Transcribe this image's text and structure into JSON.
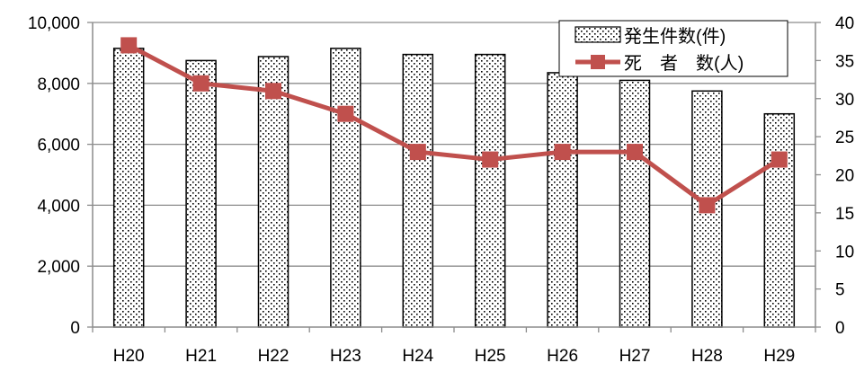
{
  "chart_data": {
    "type": "bar+line",
    "categories": [
      "H20",
      "H21",
      "H22",
      "H23",
      "H24",
      "H25",
      "H26",
      "H27",
      "H28",
      "H29"
    ],
    "series": [
      {
        "name": "発生件数(件)",
        "type": "bar",
        "axis": "left",
        "pattern": "dotted",
        "values": [
          9150,
          8750,
          8880,
          9150,
          8950,
          8950,
          8350,
          8100,
          7750,
          7000
        ]
      },
      {
        "name": "死　者　数(人)",
        "type": "line",
        "axis": "right",
        "color": "#c0504d",
        "marker": "square",
        "values": [
          37,
          32,
          31,
          28,
          23,
          22,
          23,
          23,
          16,
          22
        ]
      }
    ],
    "y_left": {
      "range": [
        0,
        10000
      ],
      "ticks": [
        "0",
        "2,000",
        "4,000",
        "6,000",
        "8,000",
        "10,000"
      ],
      "tick_values": [
        0,
        2000,
        4000,
        6000,
        8000,
        10000
      ]
    },
    "y_right": {
      "range": [
        0,
        40
      ],
      "ticks": [
        "0",
        "5",
        "10",
        "15",
        "20",
        "25",
        "30",
        "35",
        "40"
      ],
      "tick_values": [
        0,
        5,
        10,
        15,
        20,
        25,
        30,
        35,
        40
      ]
    },
    "grid": true,
    "legend_position": "top-right",
    "colors": {
      "line": "#c0504d",
      "grid": "#8c8c8c",
      "bar_border": "#000000"
    }
  }
}
